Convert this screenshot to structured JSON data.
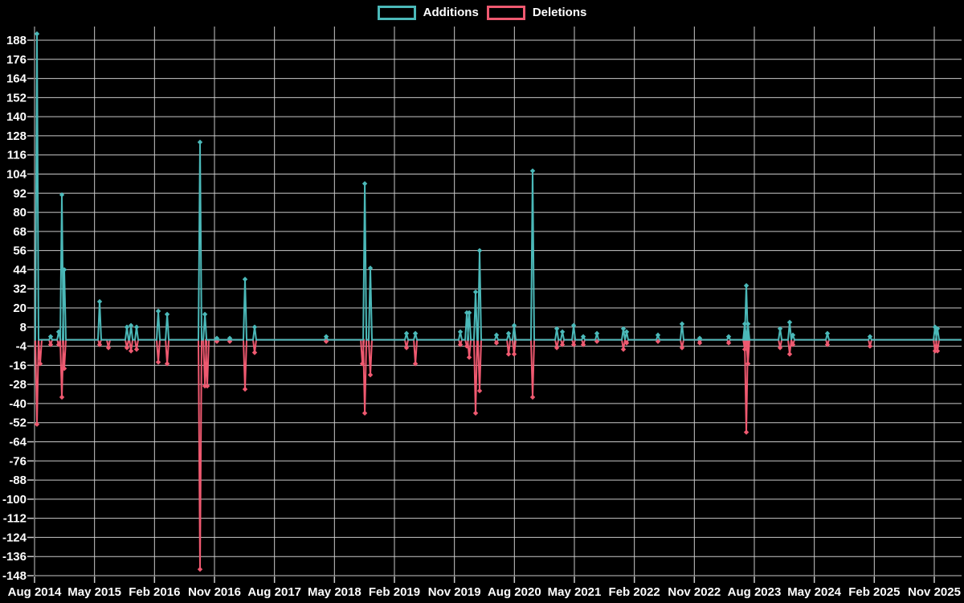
{
  "legend": {
    "additions_label": "Additions",
    "deletions_label": "Deletions"
  },
  "colors": {
    "additions": "#4bb9b9",
    "deletions": "#ef5970",
    "grid": "#c9c9c9",
    "background": "#000000",
    "text": "#ffffff"
  },
  "chart_data": {
    "type": "line",
    "title": "",
    "xlabel": "",
    "ylabel": "",
    "grid": true,
    "legend_position": "top-center",
    "ylim": [
      -148,
      188
    ],
    "y_tick_step": 12,
    "y_ticks": [
      188,
      176,
      164,
      152,
      140,
      128,
      116,
      104,
      92,
      80,
      68,
      56,
      44,
      32,
      20,
      8,
      -4,
      -16,
      -28,
      -40,
      -52,
      -64,
      -76,
      -88,
      -100,
      -112,
      -124,
      -136,
      -148
    ],
    "x_ticks": [
      {
        "label": "Aug 2014",
        "year": 2014.583
      },
      {
        "label": "May 2015",
        "year": 2015.333
      },
      {
        "label": "Feb 2016",
        "year": 2016.083
      },
      {
        "label": "Nov 2016",
        "year": 2016.833
      },
      {
        "label": "Aug 2017",
        "year": 2017.583
      },
      {
        "label": "May 2018",
        "year": 2018.333
      },
      {
        "label": "Feb 2019",
        "year": 2019.083
      },
      {
        "label": "Nov 2019",
        "year": 2019.833
      },
      {
        "label": "Aug 2020",
        "year": 2020.583
      },
      {
        "label": "May 2021",
        "year": 2021.333
      },
      {
        "label": "Feb 2022",
        "year": 2022.083
      },
      {
        "label": "Nov 2022",
        "year": 2022.833
      },
      {
        "label": "Aug 2023",
        "year": 2023.583
      },
      {
        "label": "May 2024",
        "year": 2024.333
      },
      {
        "label": "Feb 2025",
        "year": 2025.083
      },
      {
        "label": "Nov 2025",
        "year": 2025.833
      }
    ],
    "x_range": [
      2014.583,
      2026.18
    ],
    "baseline_value": 0,
    "series": [
      {
        "name": "Deletions",
        "color": "#ef5970",
        "points": [
          [
            2014.613,
            -53
          ],
          [
            2014.653,
            -15
          ],
          [
            2014.784,
            -3
          ],
          [
            2014.885,
            -3
          ],
          [
            2014.925,
            -36
          ],
          [
            2014.955,
            -18
          ],
          [
            2015.397,
            -3
          ],
          [
            2015.507,
            -5
          ],
          [
            2015.738,
            -5
          ],
          [
            2015.789,
            -7
          ],
          [
            2015.859,
            -6
          ],
          [
            2016.13,
            -14
          ],
          [
            2016.241,
            -15
          ],
          [
            2016.652,
            -144
          ],
          [
            2016.713,
            -29
          ],
          [
            2016.743,
            -29
          ],
          [
            2016.863,
            -1
          ],
          [
            2017.024,
            -1
          ],
          [
            2017.215,
            -31
          ],
          [
            2017.335,
            -8
          ],
          [
            2018.23,
            -1
          ],
          [
            2018.682,
            -15
          ],
          [
            2018.712,
            -46
          ],
          [
            2018.782,
            -22
          ],
          [
            2019.234,
            -5
          ],
          [
            2019.345,
            -15
          ],
          [
            2019.907,
            -3
          ],
          [
            2019.988,
            -4
          ],
          [
            2020.018,
            -11
          ],
          [
            2020.098,
            -46
          ],
          [
            2020.148,
            -32
          ],
          [
            2020.359,
            -2
          ],
          [
            2020.51,
            -9
          ],
          [
            2020.58,
            -9
          ],
          [
            2020.811,
            -36
          ],
          [
            2021.113,
            -5
          ],
          [
            2021.183,
            -3
          ],
          [
            2021.324,
            -3
          ],
          [
            2021.444,
            -3
          ],
          [
            2021.615,
            -1
          ],
          [
            2021.946,
            -6
          ],
          [
            2021.986,
            -2
          ],
          [
            2022.378,
            -1
          ],
          [
            2022.679,
            -5
          ],
          [
            2022.9,
            -2
          ],
          [
            2023.262,
            -2
          ],
          [
            2023.463,
            -6
          ],
          [
            2023.483,
            -58
          ],
          [
            2023.503,
            -15
          ],
          [
            2023.905,
            -5
          ],
          [
            2024.025,
            -9
          ],
          [
            2024.065,
            -3
          ],
          [
            2024.497,
            -3
          ],
          [
            2025.029,
            -4
          ],
          [
            2025.843,
            -7
          ],
          [
            2025.873,
            -7
          ]
        ]
      },
      {
        "name": "Additions",
        "color": "#4bb9b9",
        "points": [
          [
            2014.613,
            192
          ],
          [
            2014.784,
            2
          ],
          [
            2014.885,
            5
          ],
          [
            2014.925,
            91
          ],
          [
            2014.955,
            44
          ],
          [
            2015.397,
            24
          ],
          [
            2015.738,
            8
          ],
          [
            2015.789,
            9
          ],
          [
            2015.859,
            8
          ],
          [
            2016.13,
            18
          ],
          [
            2016.241,
            16
          ],
          [
            2016.652,
            124
          ],
          [
            2016.713,
            16
          ],
          [
            2016.863,
            1
          ],
          [
            2017.024,
            1
          ],
          [
            2017.215,
            38
          ],
          [
            2017.335,
            8
          ],
          [
            2018.23,
            2
          ],
          [
            2018.712,
            98
          ],
          [
            2018.782,
            45
          ],
          [
            2019.234,
            4
          ],
          [
            2019.345,
            4
          ],
          [
            2019.907,
            5
          ],
          [
            2019.988,
            17
          ],
          [
            2020.018,
            17
          ],
          [
            2020.098,
            30
          ],
          [
            2020.148,
            56
          ],
          [
            2020.359,
            3
          ],
          [
            2020.51,
            4
          ],
          [
            2020.58,
            9
          ],
          [
            2020.811,
            106
          ],
          [
            2021.113,
            7
          ],
          [
            2021.183,
            5
          ],
          [
            2021.324,
            9
          ],
          [
            2021.444,
            2
          ],
          [
            2021.615,
            4
          ],
          [
            2021.946,
            7
          ],
          [
            2021.986,
            5
          ],
          [
            2022.378,
            3
          ],
          [
            2022.679,
            10
          ],
          [
            2022.9,
            1
          ],
          [
            2023.262,
            2
          ],
          [
            2023.463,
            10
          ],
          [
            2023.483,
            34
          ],
          [
            2023.503,
            10
          ],
          [
            2023.905,
            7
          ],
          [
            2024.025,
            11
          ],
          [
            2024.065,
            3
          ],
          [
            2024.497,
            4
          ],
          [
            2025.029,
            2
          ],
          [
            2025.843,
            8
          ],
          [
            2025.873,
            7
          ]
        ]
      }
    ]
  }
}
